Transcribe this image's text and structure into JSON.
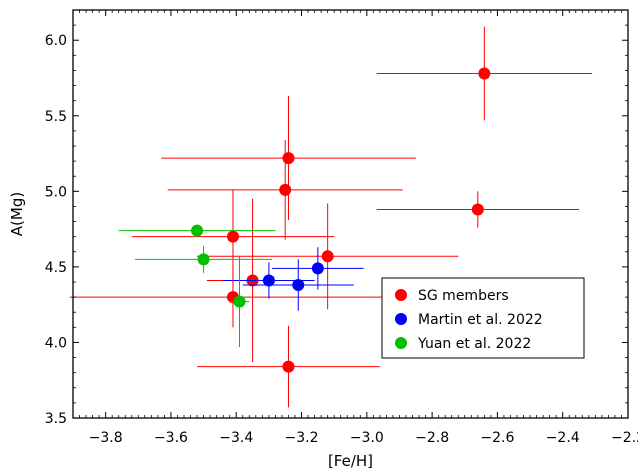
{
  "chart_data": {
    "type": "scatter",
    "xlabel": "[Fe/H]",
    "ylabel": "A(Mg)",
    "xlim": [
      -3.9,
      -2.2
    ],
    "ylim": [
      3.5,
      6.2
    ],
    "xticks": [
      -3.8,
      -3.6,
      -3.4,
      -3.2,
      -3.0,
      -2.8,
      -2.6,
      -2.4,
      -2.2
    ],
    "xtick_labels": [
      "−3.8",
      "−3.6",
      "−3.4",
      "−3.2",
      "−3.0",
      "−2.8",
      "−2.6",
      "−2.4",
      "−2.2"
    ],
    "yticks": [
      3.5,
      4.0,
      4.5,
      5.0,
      5.5,
      6.0
    ],
    "ytick_labels": [
      "3.5",
      "4.0",
      "4.5",
      "5.0",
      "5.5",
      "6.0"
    ],
    "grid": false,
    "legend_position": "lower-right",
    "series": [
      {
        "name": "SG members",
        "color": "#ff0000",
        "points": [
          {
            "x": -2.64,
            "y": 5.78,
            "xerr": 0.33,
            "yerr": 0.31
          },
          {
            "x": -3.24,
            "y": 5.22,
            "xerr": 0.39,
            "yerr": 0.41
          },
          {
            "x": -3.25,
            "y": 5.01,
            "xerr": 0.36,
            "yerr": 0.33
          },
          {
            "x": -2.66,
            "y": 4.88,
            "xerr": 0.31,
            "yerr": 0.12
          },
          {
            "x": -3.41,
            "y": 4.7,
            "xerr": 0.31,
            "yerr": 0.31
          },
          {
            "x": -3.12,
            "y": 4.57,
            "xerr": 0.4,
            "yerr": 0.35
          },
          {
            "x": -3.35,
            "y": 4.41,
            "xerr": 0.14,
            "yerr": 0.54
          },
          {
            "x": -3.41,
            "y": 4.3,
            "xerr": 0.5,
            "yerr": 0.2
          },
          {
            "x": -3.24,
            "y": 3.84,
            "xerr": 0.28,
            "yerr": 0.27
          }
        ]
      },
      {
        "name": "Martin et al. 2022",
        "color": "#0000ff",
        "points": [
          {
            "x": -3.3,
            "y": 4.41,
            "xerr": 0.14,
            "yerr": 0.12
          },
          {
            "x": -3.21,
            "y": 4.38,
            "xerr": 0.17,
            "yerr": 0.17
          },
          {
            "x": -3.15,
            "y": 4.49,
            "xerr": 0.14,
            "yerr": 0.14
          }
        ]
      },
      {
        "name": "Yuan et al. 2022",
        "color": "#00c000",
        "points": [
          {
            "x": -3.52,
            "y": 4.74,
            "xerr": 0.24,
            "yerr": 0.04
          },
          {
            "x": -3.5,
            "y": 4.55,
            "xerr": 0.21,
            "yerr": 0.09
          },
          {
            "x": -3.39,
            "y": 4.27,
            "xerr": 0.03,
            "yerr": 0.3
          }
        ]
      }
    ]
  }
}
